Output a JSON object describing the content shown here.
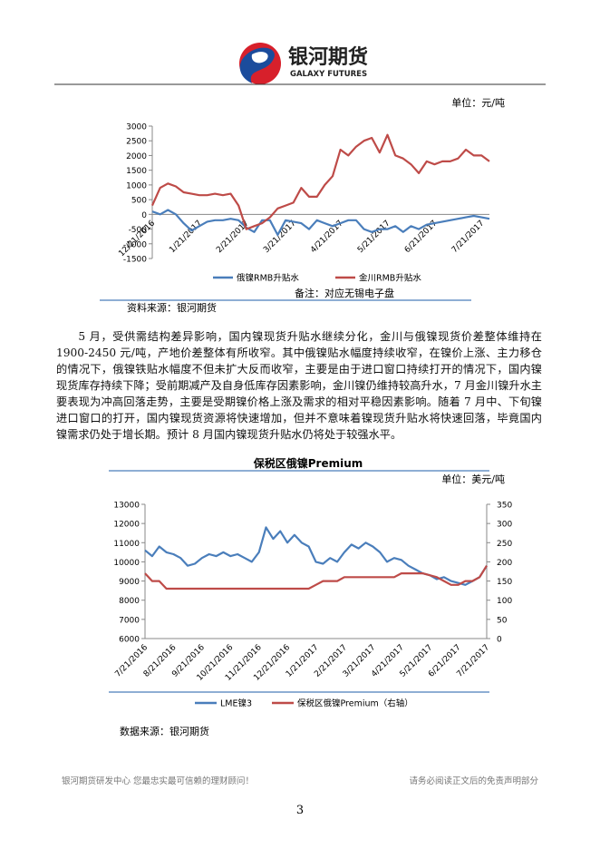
{
  "header": {
    "logo_cn": "银河期货",
    "logo_en": "GALAXY FUTURES"
  },
  "chart_data": [
    {
      "type": "line",
      "unit": "单位：元/吨",
      "categories": [
        "12/21/2016",
        null,
        null,
        null,
        null,
        null,
        "1/21/2017",
        null,
        null,
        null,
        null,
        null,
        "2/21/2017",
        null,
        null,
        null,
        null,
        null,
        "3/21/2017",
        null,
        null,
        null,
        null,
        null,
        "4/21/2017",
        null,
        null,
        null,
        null,
        null,
        "5/21/2017",
        null,
        null,
        null,
        null,
        null,
        "6/21/2017",
        null,
        null,
        null,
        null,
        null,
        "7/21/2017",
        null
      ],
      "series": [
        {
          "name": "俄镍RMB升贴水",
          "color": "#4a7ebb",
          "values": [
            100,
            0,
            150,
            0,
            -300,
            -550,
            -400,
            -250,
            -200,
            -200,
            -150,
            -200,
            -450,
            -600,
            -200,
            -200,
            -700,
            -200,
            -250,
            -300,
            -500,
            -200,
            -300,
            -400,
            -300,
            -200,
            -200,
            -500,
            -600,
            -500,
            -500,
            -400,
            -600,
            -400,
            -500,
            -350,
            -300,
            -250,
            -200,
            -150,
            -100,
            -50,
            -100,
            -150
          ]
        },
        {
          "name": "金川RMB升贴水",
          "color": "#be4b48",
          "values": [
            300,
            900,
            1050,
            950,
            750,
            700,
            650,
            650,
            700,
            650,
            700,
            300,
            -500,
            -400,
            -300,
            -100,
            200,
            300,
            400,
            900,
            600,
            600,
            1000,
            1300,
            2200,
            2000,
            2300,
            2500,
            2600,
            2100,
            2700,
            2000,
            1900,
            1700,
            1400,
            1800,
            1700,
            1800,
            1800,
            1900,
            2200,
            2000,
            2000,
            1800
          ]
        }
      ],
      "ylim": [
        -1500,
        3000
      ],
      "yticks": [
        3000,
        2500,
        2000,
        1500,
        1000,
        500,
        0,
        -500,
        -1000,
        -1500
      ],
      "note": "备注：对应无锡电子盘",
      "source": "资料来源：银河期货"
    },
    {
      "type": "line",
      "title": "保税区俄镍Premium",
      "unit": "单位：美元/吨",
      "categories": [
        "7/21/2016",
        null,
        null,
        null,
        "8/21/2016",
        null,
        null,
        null,
        "9/21/2016",
        null,
        null,
        null,
        "10/21/2016",
        null,
        null,
        null,
        "11/21/2016",
        null,
        null,
        null,
        "12/21/2016",
        null,
        null,
        null,
        "1/21/2017",
        null,
        null,
        null,
        "2/21/2017",
        null,
        null,
        null,
        "3/21/2017",
        null,
        null,
        null,
        "4/21/2017",
        null,
        null,
        null,
        "5/21/2017",
        null,
        null,
        null,
        "6/21/2017",
        null,
        null,
        null,
        "7/21/2017"
      ],
      "series": [
        {
          "name": "LME镍3",
          "color": "#4a7ebb",
          "values": [
            10600,
            10300,
            10800,
            10500,
            10400,
            10200,
            9800,
            9900,
            10200,
            10400,
            10300,
            10500,
            10300,
            10400,
            10200,
            10000,
            10500,
            11800,
            11200,
            11600,
            11000,
            11400,
            11000,
            10800,
            10000,
            9900,
            10200,
            10000,
            10500,
            10900,
            10700,
            11000,
            10800,
            10500,
            10000,
            10200,
            10100,
            9800,
            9600,
            9400,
            9300,
            9100,
            9200,
            9000,
            8900,
            8800,
            9000,
            9200,
            9800
          ]
        },
        {
          "name": "保税区俄镍Premium（右轴）",
          "color": "#be4b48",
          "axis": "y2",
          "values": [
            170,
            150,
            150,
            130,
            130,
            130,
            130,
            130,
            130,
            130,
            130,
            130,
            130,
            130,
            130,
            130,
            130,
            130,
            130,
            130,
            130,
            130,
            130,
            130,
            140,
            150,
            150,
            150,
            160,
            160,
            160,
            160,
            160,
            160,
            160,
            160,
            170,
            170,
            170,
            170,
            165,
            160,
            150,
            140,
            140,
            150,
            150,
            160,
            190
          ]
        }
      ],
      "ylim": [
        6000,
        13000
      ],
      "yticks": [
        13000,
        12000,
        11000,
        10000,
        9000,
        8000,
        7000,
        6000
      ],
      "y2lim": [
        0,
        350
      ],
      "y2ticks": [
        350,
        300,
        250,
        200,
        150,
        100,
        50,
        0
      ],
      "source": "数据来源：银河期货"
    }
  ],
  "paragraph": "5 月，受供需结构差异影响，国内镍现货升贴水继续分化，金川与俄镍现货价差整体维持在 1900-2450 元/吨，产地价差整体有所收窄。其中俄镍贴水幅度持续收窄，在镍价上涨、主力移仓的情况下，俄镍铁贴水幅度不但未扩大反而收窄，主要是由于进口窗口持续打开的情况下，国内镍现货库存持续下降；受前期减产及自身低库存因素影响，金川镍仍维持较高升水，7 月金川镍升水主要表现为冲高回落走势，主要是受期镍价格上涨及需求的相对平稳因素影响。随着 7 月中、下旬镍进口窗口的打开，国内镍现货资源将快速增加，但并不意味着镍现货升贴水将快速回落，毕竟国内镍需求仍处于增长期。预计 8 月国内镍现货升贴水仍将处于较强水平。",
  "footer": {
    "left": "银河期货研发中心  您最忠实最可信赖的理财顾问！",
    "right": "请务必阅读正文后的免责声明部分",
    "page": "3"
  }
}
